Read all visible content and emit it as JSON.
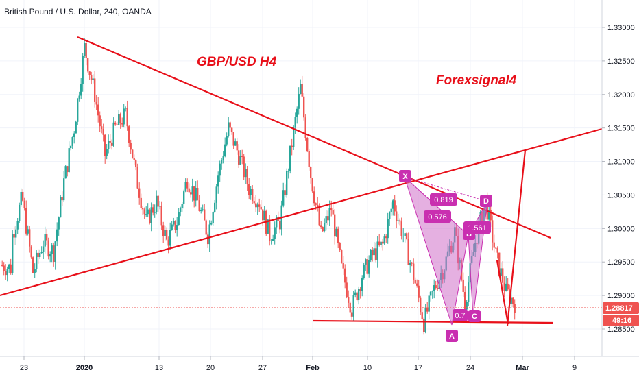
{
  "header": {
    "symbol_text": "British Pound / U.S. Dollar, 240, OANDA"
  },
  "annotations": {
    "pair_title": "GBP/USD H4",
    "brand": "Forexsignal4"
  },
  "chart_data": {
    "type": "candlestick",
    "ylim": [
      1.2815,
      1.3345
    ],
    "y_ticks": [
      "1.28500",
      "1.29000",
      "1.29500",
      "1.30000",
      "1.30500",
      "1.31000",
      "1.31500",
      "1.32000",
      "1.32500",
      "1.33000"
    ],
    "x_ticks": [
      "23",
      "2020",
      "13",
      "20",
      "27",
      "Feb",
      "10",
      "17",
      "24",
      "Mar",
      "9"
    ],
    "last_price": "1.28817",
    "countdown": "49:16",
    "colors": {
      "up": "#26a69a",
      "down": "#ef5350",
      "lines": "#e8101a",
      "pattern": "#c92fb0",
      "pattern_fill": "#d070c8"
    },
    "pattern": {
      "points": [
        {
          "label": "X",
          "price": 1.3065
        },
        {
          "label": "A",
          "price": 1.285
        },
        {
          "label": "B",
          "price": 1.2992
        },
        {
          "label": "C",
          "price": 1.2876
        },
        {
          "label": "D",
          "price": 1.3043
        }
      ],
      "ratios": [
        "0.819",
        "0.576",
        "1.561",
        "0.7"
      ]
    },
    "anchors": [
      [
        1.2945,
        1.294
      ],
      [
        1.299,
        1.305
      ],
      [
        1.304,
        1.2935
      ],
      [
        1.2935,
        1.298
      ],
      [
        1.298,
        1.2965
      ],
      [
        1.2965,
        1.307
      ],
      [
        1.307,
        1.315
      ],
      [
        1.315,
        1.327
      ],
      [
        1.327,
        1.32
      ],
      [
        1.32,
        1.311
      ],
      [
        1.311,
        1.315
      ],
      [
        1.315,
        1.317
      ],
      [
        1.317,
        1.308
      ],
      [
        1.308,
        1.301
      ],
      [
        1.301,
        1.304
      ],
      [
        1.304,
        1.298
      ],
      [
        1.298,
        1.301
      ],
      [
        1.301,
        1.3075
      ],
      [
        1.3075,
        1.304
      ],
      [
        1.304,
        1.299
      ],
      [
        1.299,
        1.308
      ],
      [
        1.308,
        1.315
      ],
      [
        1.315,
        1.311
      ],
      [
        1.311,
        1.306
      ],
      [
        1.306,
        1.304
      ],
      [
        1.304,
        1.299
      ],
      [
        1.299,
        1.301
      ],
      [
        1.301,
        1.311
      ],
      [
        1.311,
        1.321
      ],
      [
        1.321,
        1.308
      ],
      [
        1.308,
        1.299
      ],
      [
        1.299,
        1.303
      ],
      [
        1.303,
        1.294
      ],
      [
        1.294,
        1.288
      ],
      [
        1.288,
        1.293
      ],
      [
        1.293,
        1.296
      ],
      [
        1.296,
        1.2975
      ],
      [
        1.2975,
        1.304
      ],
      [
        1.304,
        1.299
      ],
      [
        1.299,
        1.293
      ],
      [
        1.293,
        1.286
      ],
      [
        1.286,
        1.291
      ],
      [
        1.291,
        1.2945
      ],
      [
        1.2945,
        1.2995
      ],
      [
        1.2995,
        1.289
      ],
      [
        1.289,
        1.298
      ],
      [
        1.298,
        1.304
      ],
      [
        1.304,
        1.296
      ],
      [
        1.296,
        1.2905
      ],
      [
        1.2905,
        1.2885
      ]
    ]
  }
}
